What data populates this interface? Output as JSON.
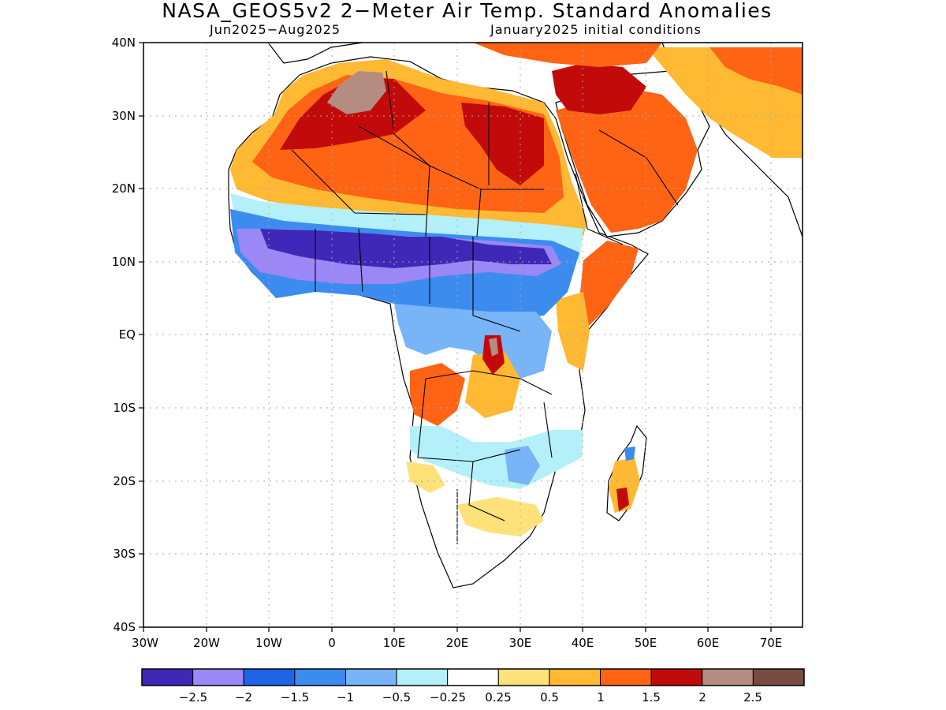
{
  "title": "NASA_GEOS5v2 2−Meter Air Temp. Standard Anomalies",
  "subtitle_left": "Jun2025−Aug2025",
  "subtitle_right": "January2025 initial conditions",
  "map": {
    "lon_range": [
      -30,
      75
    ],
    "lat_range": [
      -40,
      40
    ],
    "lon_ticks": [
      "30W",
      "20W",
      "10W",
      "0",
      "10E",
      "20E",
      "30E",
      "40E",
      "50E",
      "60E",
      "70E"
    ],
    "lat_ticks": [
      "40N",
      "30N",
      "20N",
      "10N",
      "EQ",
      "10S",
      "20S",
      "30S",
      "40S"
    ]
  },
  "legend": {
    "colors": [
      "#3f28b8",
      "#9b87f5",
      "#1e64e6",
      "#3c8cf0",
      "#78b4f8",
      "#b4f0fa",
      "#ffffff",
      "#ffe17a",
      "#ffb932",
      "#ff6414",
      "#c30a0a",
      "#b48c82",
      "#784b41"
    ],
    "labels": [
      "−2.5",
      "−2",
      "−1.5",
      "−1",
      "−0.5",
      "−0.25",
      "0.25",
      "0.5",
      "1",
      "1.5",
      "2",
      "2.5"
    ]
  }
}
